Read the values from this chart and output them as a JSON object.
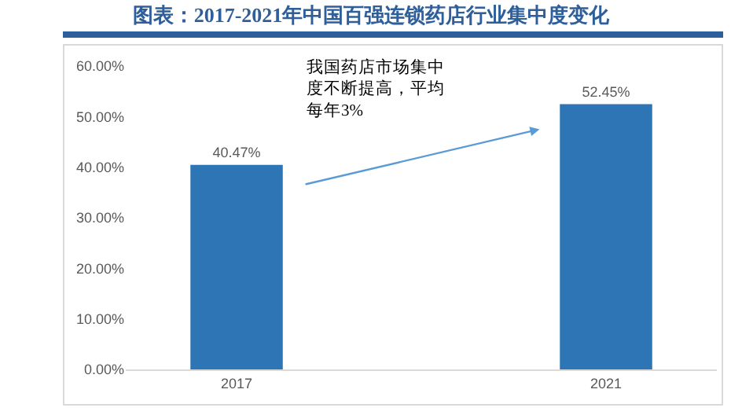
{
  "chart_data": {
    "type": "bar",
    "title": "图表：2017-2021年中国百强连锁药店行业集中度变化",
    "categories": [
      "2017",
      "2021"
    ],
    "values": [
      40.47,
      52.45
    ],
    "value_labels": [
      "40.47%",
      "52.45%"
    ],
    "color": "#2e75b6",
    "ylim": [
      0,
      60
    ],
    "yticks": [
      {
        "value": 0,
        "label": "0.00%"
      },
      {
        "value": 10,
        "label": "10.00%"
      },
      {
        "value": 20,
        "label": "20.00%"
      },
      {
        "value": 30,
        "label": "30.00%"
      },
      {
        "value": 40,
        "label": "40.00%"
      },
      {
        "value": 50,
        "label": "50.00%"
      },
      {
        "value": 60,
        "label": "60.00%"
      }
    ],
    "grid": false,
    "annotations": [
      "我国药店市场集中度不断提高，平均每年3%"
    ]
  }
}
